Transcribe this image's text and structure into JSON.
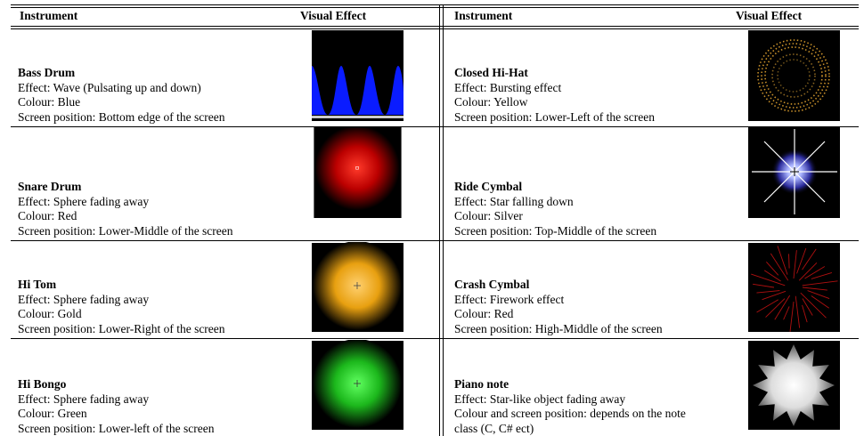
{
  "header": [
    "Instrument",
    "Visual Effect",
    "Instrument",
    "Visual Effect"
  ],
  "rows": [
    {
      "left": {
        "name": "Bass Drum",
        "lines": [
          "Effect: Wave (Pulsating up and down)",
          "Colour: Blue",
          "Screen position: Bottom edge of the screen"
        ]
      },
      "right": {
        "name": "Closed Hi-Hat",
        "lines": [
          "Effect: Bursting effect",
          "Colour: Yellow",
          "Screen position: Lower-Left of the screen"
        ]
      }
    },
    {
      "left": {
        "name": "Snare Drum",
        "lines": [
          "Effect: Sphere fading away",
          "Colour: Red",
          "Screen position: Lower-Middle of the screen"
        ]
      },
      "right": {
        "name": "Ride Cymbal",
        "lines": [
          "Effect: Star falling down",
          "Colour: Silver",
          "Screen position: Top-Middle of the screen"
        ]
      }
    },
    {
      "left": {
        "name": "Hi Tom",
        "lines": [
          "Effect: Sphere fading away",
          "Colour: Gold",
          "Screen position: Lower-Right of the screen"
        ]
      },
      "right": {
        "name": "Crash Cymbal",
        "lines": [
          "Effect: Firework effect",
          "Colour: Red",
          "Screen position: High-Middle of the screen"
        ]
      }
    },
    {
      "left": {
        "name": "Hi Bongo",
        "lines": [
          "Effect: Sphere fading away",
          "Colour: Green",
          "Screen position: Lower-left of the screen"
        ]
      },
      "right": {
        "name": "Piano note",
        "lines": [
          "Effect: Star-like object fading away",
          "Colour and screen position: depends on the note",
          "class (C, C# ect)"
        ]
      }
    }
  ]
}
